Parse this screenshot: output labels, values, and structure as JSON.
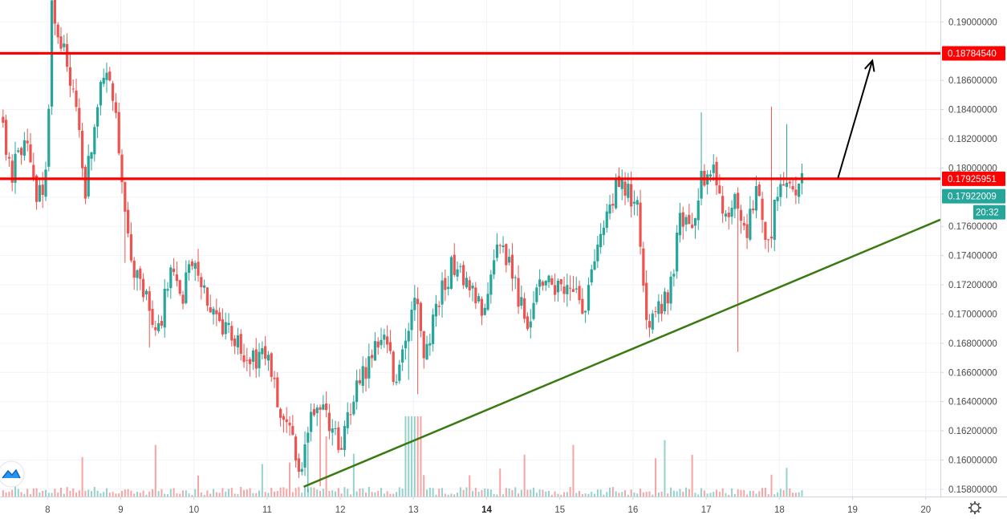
{
  "chart_data": {
    "type": "candlestick",
    "ylim": [
      0.1575,
      0.1915
    ],
    "xlim": [
      7.35,
      20.2
    ],
    "y_ticks": [
      "0.19000000",
      "0.18800000",
      "0.18600000",
      "0.18400000",
      "0.18200000",
      "0.18000000",
      "0.17800000",
      "0.17600000",
      "0.17400000",
      "0.17200000",
      "0.17000000",
      "0.16800000",
      "0.16600000",
      "0.16400000",
      "0.16200000",
      "0.16000000",
      "0.15800000"
    ],
    "x_ticks": [
      {
        "label": "8",
        "x": 8,
        "bold": false
      },
      {
        "label": "9",
        "x": 9,
        "bold": false
      },
      {
        "label": "10",
        "x": 10,
        "bold": false
      },
      {
        "label": "11",
        "x": 11,
        "bold": false
      },
      {
        "label": "12",
        "x": 12,
        "bold": false
      },
      {
        "label": "13",
        "x": 13,
        "bold": false
      },
      {
        "label": "14",
        "x": 14,
        "bold": true
      },
      {
        "label": "15",
        "x": 15,
        "bold": false
      },
      {
        "label": "16",
        "x": 16,
        "bold": false
      },
      {
        "label": "17",
        "x": 17,
        "bold": false
      },
      {
        "label": "18",
        "x": 18,
        "bold": false
      },
      {
        "label": "19",
        "x": 19,
        "bold": false
      },
      {
        "label": "20",
        "x": 20,
        "bold": false
      }
    ],
    "grid": true,
    "colors": {
      "up": "#26a69a",
      "down": "#ef5350",
      "volume_up": "#94d2cb",
      "volume_down": "#f5a5a3",
      "resistance": "#ff0000",
      "trendline": "#3a7a12",
      "arrow": "#000000",
      "price_tag": "#26a69a"
    },
    "price_path": [
      [
        7.35,
        0.1835
      ],
      [
        7.5,
        0.1795
      ],
      [
        7.7,
        0.182
      ],
      [
        7.85,
        0.1775
      ],
      [
        8.0,
        0.1795
      ],
      [
        8.05,
        0.191
      ],
      [
        8.25,
        0.1875
      ],
      [
        8.4,
        0.184
      ],
      [
        8.5,
        0.178
      ],
      [
        8.65,
        0.1835
      ],
      [
        8.8,
        0.1875
      ],
      [
        8.95,
        0.1835
      ],
      [
        9.05,
        0.1765
      ],
      [
        9.2,
        0.1725
      ],
      [
        9.35,
        0.1715
      ],
      [
        9.5,
        0.1685
      ],
      [
        9.7,
        0.1735
      ],
      [
        9.85,
        0.1715
      ],
      [
        10.0,
        0.1745
      ],
      [
        10.15,
        0.1715
      ],
      [
        10.35,
        0.1695
      ],
      [
        10.55,
        0.1685
      ],
      [
        10.75,
        0.1665
      ],
      [
        11.0,
        0.1675
      ],
      [
        11.15,
        0.1635
      ],
      [
        11.3,
        0.1625
      ],
      [
        11.45,
        0.1595
      ],
      [
        11.6,
        0.1625
      ],
      [
        11.8,
        0.1635
      ],
      [
        12.0,
        0.1605
      ],
      [
        12.2,
        0.1645
      ],
      [
        12.45,
        0.1675
      ],
      [
        12.6,
        0.1685
      ],
      [
        12.75,
        0.1655
      ],
      [
        12.9,
        0.1675
      ],
      [
        13.05,
        0.1715
      ],
      [
        13.15,
        0.1665
      ],
      [
        13.3,
        0.1705
      ],
      [
        13.55,
        0.1735
      ],
      [
        13.75,
        0.1715
      ],
      [
        13.95,
        0.1705
      ],
      [
        14.15,
        0.1755
      ],
      [
        14.35,
        0.1725
      ],
      [
        14.55,
        0.1695
      ],
      [
        14.75,
        0.1725
      ],
      [
        14.95,
        0.1715
      ],
      [
        15.15,
        0.1725
      ],
      [
        15.3,
        0.1695
      ],
      [
        15.45,
        0.1735
      ],
      [
        15.6,
        0.1755
      ],
      [
        15.75,
        0.1785
      ],
      [
        15.9,
        0.1785
      ],
      [
        16.05,
        0.1775
      ],
      [
        16.2,
        0.1695
      ],
      [
        16.35,
        0.1705
      ],
      [
        16.5,
        0.1715
      ],
      [
        16.65,
        0.1765
      ],
      [
        16.8,
        0.1755
      ],
      [
        16.95,
        0.1795
      ],
      [
        17.1,
        0.1795
      ],
      [
        17.25,
        0.1765
      ],
      [
        17.4,
        0.1775
      ],
      [
        17.55,
        0.1755
      ],
      [
        17.7,
        0.1785
      ],
      [
        17.85,
        0.1745
      ],
      [
        18.0,
        0.1795
      ],
      [
        18.15,
        0.1785
      ],
      [
        18.3,
        0.1792
      ]
    ],
    "levels": [
      {
        "price": 0.1878454,
        "label": "0.18784540"
      },
      {
        "price": 0.17925951,
        "label": "0.17925951"
      }
    ],
    "current_price": {
      "price": 0.17922009,
      "label": "0.17922009"
    },
    "countdown": "20:32",
    "trendline": {
      "from": [
        11.5,
        0.15817
      ],
      "to": [
        20.2,
        0.17646
      ]
    },
    "arrow": {
      "from": [
        18.8,
        0.1793
      ],
      "to": [
        19.27,
        0.18735
      ]
    }
  }
}
